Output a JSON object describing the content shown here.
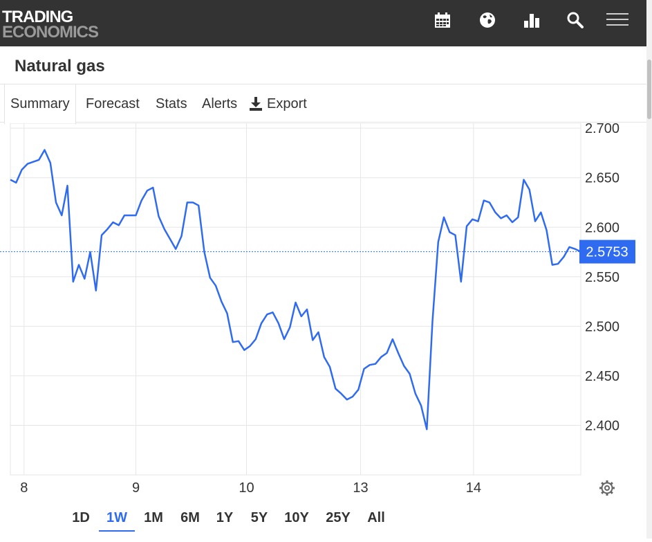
{
  "header": {
    "logo_line1": "TRADING",
    "logo_line2": "ECONOMICS",
    "icons": [
      "calendar-icon",
      "globe-icon",
      "bar-chart-icon",
      "search-icon",
      "menu-icon"
    ]
  },
  "page_title": "Natural gas",
  "tabs": [
    {
      "label": "Summary",
      "active": true
    },
    {
      "label": "Forecast"
    },
    {
      "label": "Stats"
    },
    {
      "label": "Alerts"
    },
    {
      "label": "Export",
      "icon": "download-icon"
    }
  ],
  "ranges": [
    {
      "label": "1D"
    },
    {
      "label": "1W",
      "active": true
    },
    {
      "label": "1M"
    },
    {
      "label": "6M"
    },
    {
      "label": "1Y"
    },
    {
      "label": "5Y"
    },
    {
      "label": "10Y"
    },
    {
      "label": "25Y"
    },
    {
      "label": "All"
    }
  ],
  "colors": {
    "line": "#2f6bf0",
    "topbar": "#333333",
    "grid": "#e6e6e6",
    "badge": "#2f6bf0"
  },
  "chart_data": {
    "type": "line",
    "x_tick_labels": [
      "8",
      "9",
      "10",
      "13",
      "14"
    ],
    "y_tick_labels": [
      "2.700",
      "2.650",
      "2.600",
      "2.550",
      "2.500",
      "2.450",
      "2.400"
    ],
    "ylim": [
      2.35,
      2.705
    ],
    "xlim": [
      0,
      5
    ],
    "current_value": 2.5753,
    "current_label": "2.5753",
    "grid": true,
    "series": [
      {
        "x": [
          0.0,
          0.05,
          0.1,
          0.15,
          0.2,
          0.25,
          0.3,
          0.35,
          0.4,
          0.45,
          0.5,
          0.55,
          0.6,
          0.65,
          0.7,
          0.75,
          0.8,
          0.85,
          0.9,
          0.95,
          1.0,
          1.05,
          1.1,
          1.15,
          1.2,
          1.25,
          1.3,
          1.35,
          1.4,
          1.45,
          1.5,
          1.55,
          1.6,
          1.65,
          1.7,
          1.75,
          1.8,
          1.85,
          1.9,
          1.95,
          2.0,
          2.05,
          2.1,
          2.15,
          2.2,
          2.25,
          2.3,
          2.35,
          2.4,
          2.45,
          2.5,
          2.55,
          2.6,
          2.65,
          2.7,
          2.75,
          2.8,
          2.85,
          2.9,
          2.95,
          3.0,
          3.05,
          3.1,
          3.15,
          3.2,
          3.25,
          3.3,
          3.35,
          3.4,
          3.45,
          3.5,
          3.55,
          3.6,
          3.65,
          3.7,
          3.75,
          3.8,
          3.85,
          3.9,
          3.95,
          4.0,
          4.05,
          4.1,
          4.15,
          4.2,
          4.25,
          4.3,
          4.35,
          4.4,
          4.45,
          4.5,
          4.55,
          4.6,
          4.65,
          4.7,
          4.75,
          4.8,
          4.85,
          4.9,
          4.95,
          5.0
        ],
        "values": [
          2.648,
          2.645,
          2.658,
          2.664,
          2.666,
          2.668,
          2.678,
          2.665,
          2.625,
          2.612,
          2.642,
          2.545,
          2.562,
          2.548,
          2.575,
          2.536,
          2.592,
          2.598,
          2.605,
          2.602,
          2.612,
          2.612,
          2.612,
          2.627,
          2.637,
          2.64,
          2.611,
          2.598,
          2.588,
          2.578,
          2.591,
          2.625,
          2.625,
          2.622,
          2.575,
          2.549,
          2.541,
          2.525,
          2.513,
          2.484,
          2.485,
          2.476,
          2.48,
          2.487,
          2.503,
          2.512,
          2.514,
          2.503,
          2.487,
          2.499,
          2.524,
          2.51,
          2.517,
          2.486,
          2.494,
          2.469,
          2.459,
          2.437,
          2.432,
          2.426,
          2.429,
          2.436,
          2.457,
          2.461,
          2.462,
          2.469,
          2.473,
          2.487,
          2.473,
          2.46,
          2.452,
          2.432,
          2.42,
          2.396,
          2.505,
          2.585,
          2.61,
          2.595,
          2.592,
          2.545,
          2.601,
          2.608,
          2.606,
          2.627,
          2.625,
          2.615,
          2.609,
          2.612,
          2.605,
          2.61,
          2.648,
          2.638,
          2.606,
          2.615,
          2.597,
          2.562,
          2.563,
          2.57,
          2.58,
          2.578,
          2.5753
        ],
        "color": "#2f6bf0"
      }
    ]
  }
}
